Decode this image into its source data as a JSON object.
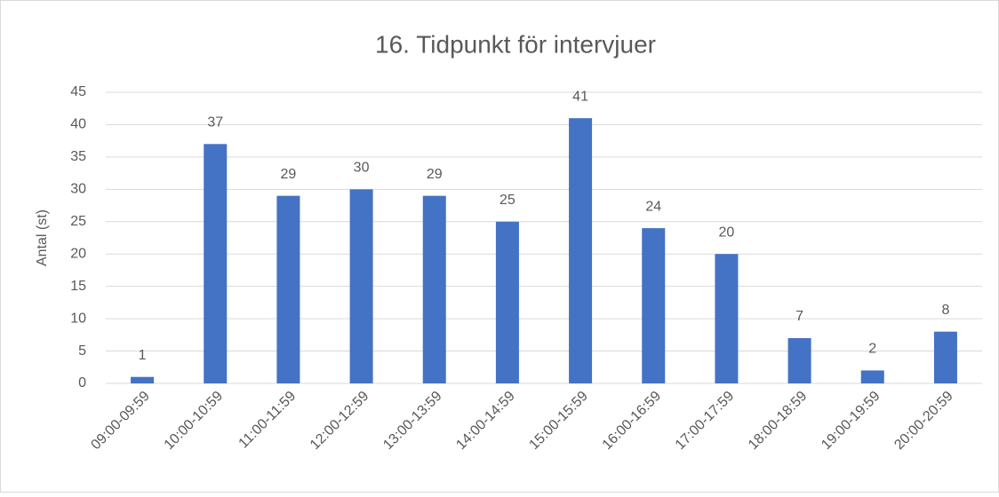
{
  "chart_data": {
    "type": "bar",
    "title": "16. Tidpunkt för intervjuer",
    "ylabel": "Antal (st)",
    "categories": [
      "09:00-09:59",
      "10:00-10:59",
      "11:00-11:59",
      "12:00-12:59",
      "13:00-13:59",
      "14:00-14:59",
      "15:00-15:59",
      "16:00-16:59",
      "17:00-17:59",
      "18:00-18:59",
      "19:00-19:59",
      "20:00-20:59"
    ],
    "values": [
      1,
      37,
      29,
      30,
      29,
      25,
      41,
      24,
      20,
      7,
      2,
      8
    ],
    "color": "#4472c4",
    "ylim": [
      0,
      45
    ],
    "yticks": [
      0,
      5,
      10,
      15,
      20,
      25,
      30,
      35,
      40,
      45
    ],
    "grid": true
  }
}
